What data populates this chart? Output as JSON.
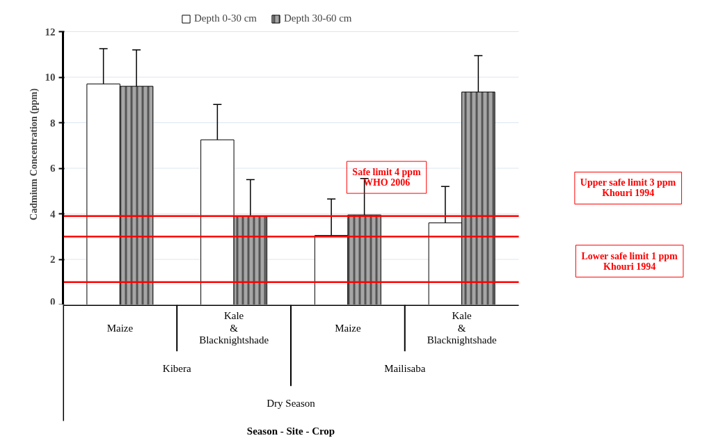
{
  "chart_data": {
    "type": "bar",
    "ylabel": "Cadmium Concentration (ppm)",
    "categories": [
      "Maize",
      "Kale & Blacknightshade",
      "Maize",
      "Kale & Blacknightshade"
    ],
    "series": [
      {
        "name": "Depth 0-30 cm",
        "color": "#ffffff",
        "values": [
          9.7,
          7.25,
          3.05,
          3.6
        ],
        "errors": [
          1.55,
          1.55,
          1.6,
          1.6
        ]
      },
      {
        "name": "Depth 30-60 cm",
        "color": "#a6a6a6",
        "values": [
          9.6,
          3.9,
          3.95,
          9.35
        ],
        "errors": [
          1.6,
          1.6,
          1.6,
          1.6
        ]
      }
    ],
    "ylim": [
      0,
      12
    ],
    "yticks": [
      0,
      2,
      4,
      6,
      8,
      10,
      12
    ],
    "grid": "y",
    "legend": "top",
    "ref_lines": [
      {
        "axis": "y",
        "value": 3.9,
        "label": "Safe limit 4 ppm\nWHO 2006",
        "color": "#ff0000"
      },
      {
        "axis": "y",
        "value": 3,
        "label": "Upper safe limit 3 ppm\nKhouri 1994",
        "color": "#ff0000"
      },
      {
        "axis": "y",
        "value": 1,
        "label": "Lower safe limit 1 ppm\nKhouri 1994",
        "color": "#ff0000"
      }
    ],
    "annotations": [
      "Kibera",
      "Mailisaba",
      "Dry Season",
      "Season - Site - Crop"
    ]
  }
}
